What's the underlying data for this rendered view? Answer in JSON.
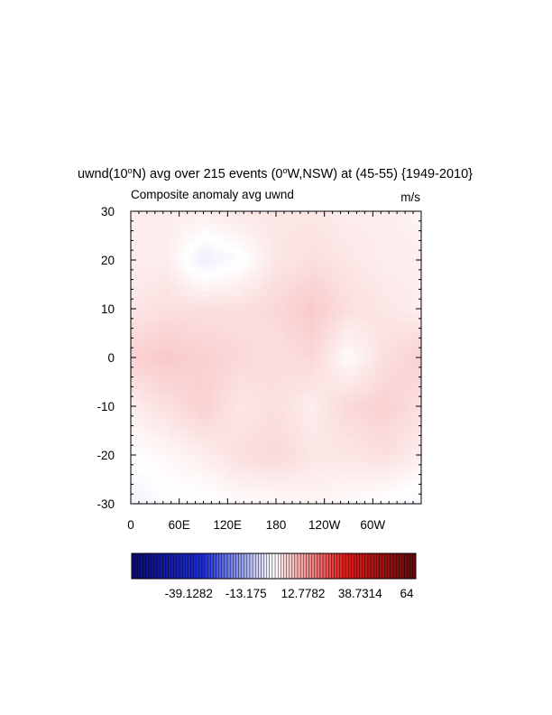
{
  "chart_data": {
    "type": "heatmap",
    "title": {
      "pre": "uwnd(10",
      "sup1": "o",
      "mid": "N) avg over 215 events (0",
      "sup2": "o",
      "post": "W,NSW) at (45-55) {1949-2010}"
    },
    "left_subtitle": "Composite anomaly avg uwnd",
    "right_subtitle": "m/s",
    "x_ticks": [
      "0",
      "60E",
      "120E",
      "180",
      "120W",
      "60W"
    ],
    "x_tick_values": [
      0,
      60,
      120,
      180,
      240,
      300
    ],
    "y_ticks": [
      "30",
      "20",
      "10",
      "0",
      "-10",
      "-20",
      "-30"
    ],
    "y_tick_values": [
      30,
      20,
      10,
      0,
      -10,
      -20,
      -30
    ],
    "xlim": [
      0,
      360
    ],
    "ylim": [
      -30,
      30
    ],
    "x_minor_step": 10,
    "y_minor_step": 2,
    "colorbar": {
      "labels": [
        "-39.1282",
        "-13.175",
        "12.7782",
        "38.7314",
        "64"
      ],
      "label_values": [
        -39.1282,
        -13.175,
        12.7782,
        38.7314,
        64
      ],
      "min": -65.0814,
      "max": 64,
      "n_colors": 101,
      "colors": [
        "#0b0b6e",
        "#1b2cd8",
        "#ffffff",
        "#e51b1b",
        "#5e0a0a"
      ]
    },
    "grid": {
      "lon": [
        0,
        45,
        90,
        135,
        180,
        225,
        270,
        315,
        360
      ],
      "lat": [
        30,
        20,
        10,
        0,
        -10,
        -20,
        -30
      ],
      "values": [
        [
          2.0,
          2.0,
          2.0,
          3.0,
          3.0,
          3.0,
          2.0,
          2.0,
          1.0
        ],
        [
          2.0,
          2.0,
          -3.0,
          -1.0,
          3.0,
          4.0,
          3.0,
          2.0,
          2.0
        ],
        [
          3.0,
          4.0,
          4.0,
          4.0,
          5.0,
          7.0,
          4.0,
          3.0,
          2.0
        ],
        [
          6.0,
          7.0,
          6.0,
          5.0,
          4.0,
          5.0,
          0.0,
          4.0,
          6.0
        ],
        [
          2.0,
          4.0,
          6.0,
          3.0,
          4.0,
          2.0,
          5.0,
          6.0,
          4.0
        ],
        [
          -0.5,
          0.5,
          2.0,
          4.0,
          5.0,
          3.0,
          3.0,
          4.0,
          2.0
        ],
        [
          -2.5,
          -1.0,
          -1.0,
          0.0,
          0.0,
          1.0,
          0.0,
          -1.0,
          -2.0
        ]
      ]
    }
  }
}
